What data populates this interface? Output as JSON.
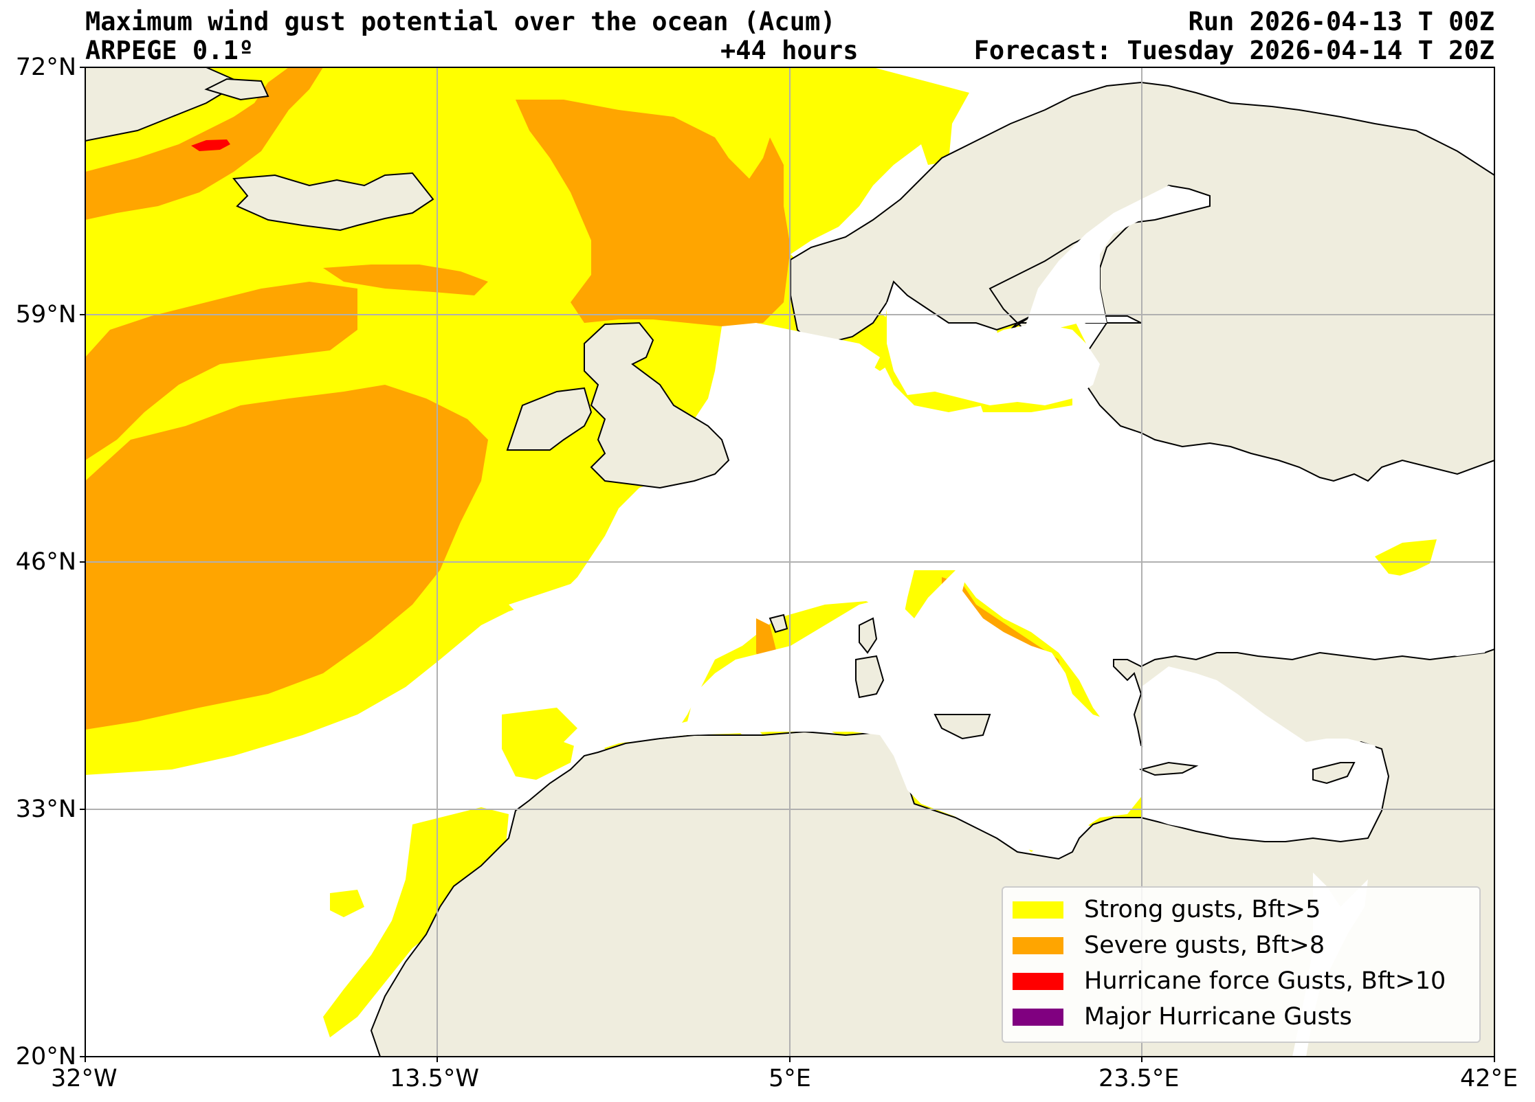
{
  "header": {
    "title_left": "Maximum wind gust potential over the ocean (Acum)",
    "model": "ARPEGE 0.1º",
    "lead_time": "+44 hours",
    "run": "Run 2026-04-13 T 00Z",
    "forecast": "Forecast: Tuesday 2026-04-14 T 20Z"
  },
  "map": {
    "projection": "plate carree",
    "lon_range": [
      -32,
      42
    ],
    "lat_range": [
      20,
      72
    ],
    "grid": true,
    "colors": {
      "land": "#efedde",
      "ocean": "#ffffff",
      "strong": "#ffff00",
      "severe": "#ffa500",
      "hurricane": "#ff0000",
      "major": "#800080",
      "grid": "#b0b0b0"
    },
    "lat_ticks": [
      {
        "value": 72,
        "label": "72°N"
      },
      {
        "value": 59,
        "label": "59°N"
      },
      {
        "value": 46,
        "label": "46°N"
      },
      {
        "value": 33,
        "label": "33°N"
      },
      {
        "value": 20,
        "label": "20°N"
      }
    ],
    "lon_ticks": [
      {
        "value": -32,
        "label": "32°W"
      },
      {
        "value": -13.5,
        "label": "13.5°W"
      },
      {
        "value": 5,
        "label": "5°E"
      },
      {
        "value": 23.5,
        "label": "23.5°E"
      },
      {
        "value": 42,
        "label": "42°E"
      }
    ]
  },
  "legend": {
    "placement": "lower-right",
    "items": [
      {
        "label": "Strong gusts, Bft>5",
        "color": "#ffff00"
      },
      {
        "label": "Severe gusts, Bft>8",
        "color": "#ffa500"
      },
      {
        "label": "Hurricane force Gusts, Bft>10",
        "color": "#ff0000"
      },
      {
        "label": "Major Hurricane Gusts",
        "color": "#800080"
      }
    ]
  }
}
